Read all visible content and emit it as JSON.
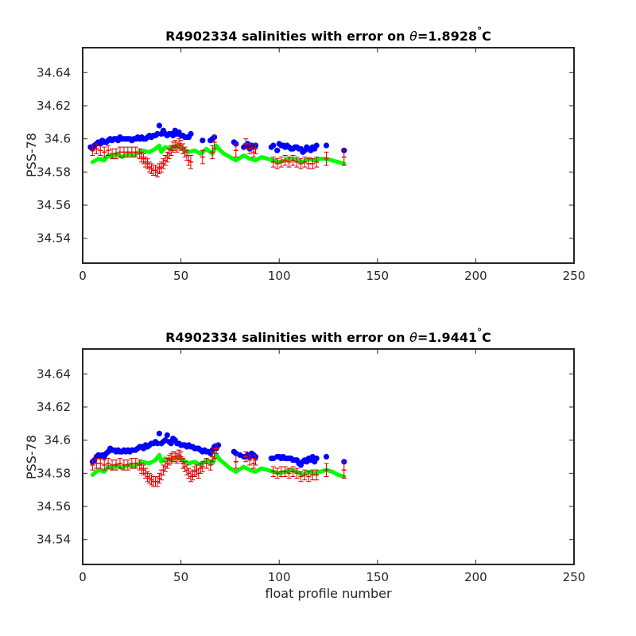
{
  "colors": {
    "float": "#0000ff",
    "mapped": "#ff0000",
    "error": "#cc0000",
    "climatology": "#00ff00",
    "axis": "#262626"
  },
  "chart_data": [
    {
      "type": "scatter",
      "title_prefix": "R4902334 salinities with error on ",
      "title_theta": "θ",
      "title_value": "=1.8928",
      "title_deg": "°",
      "title_unit": "C",
      "xlabel": "",
      "ylabel": "PSS-78",
      "xlim": [
        0,
        250
      ],
      "ylim": [
        34.525,
        34.655
      ],
      "xticks": [
        0,
        50,
        100,
        150,
        200,
        250
      ],
      "yticks": [
        34.54,
        34.56,
        34.58,
        34.6,
        34.62,
        34.64
      ],
      "series": [
        {
          "role": "float",
          "marker": "dot",
          "x": [
            4,
            5,
            6,
            7,
            8,
            9,
            10,
            11,
            12,
            13,
            14,
            15,
            16,
            17,
            18,
            19,
            20,
            21,
            22,
            23,
            24,
            25,
            26,
            27,
            28,
            29,
            30,
            31,
            32,
            33,
            34,
            35,
            36,
            37,
            38,
            39,
            40,
            41,
            42,
            43,
            44,
            45,
            46,
            47,
            48,
            49,
            50,
            51,
            52,
            53,
            54,
            55,
            61,
            65,
            66,
            67,
            77,
            78,
            82,
            83,
            84,
            85,
            86,
            87,
            88,
            96,
            97,
            99,
            100,
            101,
            102,
            103,
            104,
            105,
            106,
            107,
            108,
            109,
            110,
            111,
            112,
            113,
            114,
            115,
            116,
            117,
            118,
            119,
            124,
            133
          ],
          "y": [
            34.595,
            34.594,
            34.596,
            34.597,
            34.598,
            34.597,
            34.599,
            34.598,
            34.598,
            34.599,
            34.6,
            34.599,
            34.6,
            34.6,
            34.599,
            34.601,
            34.6,
            34.6,
            34.6,
            34.6,
            34.6,
            34.599,
            34.6,
            34.6,
            34.601,
            34.6,
            34.601,
            34.6,
            34.6,
            34.601,
            34.602,
            34.601,
            34.602,
            34.602,
            34.603,
            34.608,
            34.603,
            34.605,
            34.603,
            34.602,
            34.603,
            34.603,
            34.602,
            34.605,
            34.603,
            34.604,
            34.602,
            34.602,
            34.601,
            34.601,
            34.601,
            34.603,
            34.599,
            34.599,
            34.6,
            34.601,
            34.598,
            34.597,
            34.595,
            34.596,
            34.597,
            34.594,
            34.596,
            34.595,
            34.596,
            34.595,
            34.596,
            34.593,
            34.597,
            34.596,
            34.596,
            34.595,
            34.596,
            34.595,
            34.594,
            34.594,
            34.595,
            34.595,
            34.594,
            34.594,
            34.592,
            34.593,
            34.595,
            34.594,
            34.593,
            34.595,
            34.594,
            34.596,
            34.596,
            34.593
          ]
        },
        {
          "role": "climatology",
          "marker": "line",
          "x": [
            5,
            8,
            11,
            13,
            15,
            17,
            20,
            23,
            26,
            30,
            34,
            37,
            39,
            40,
            42,
            45,
            48,
            51,
            54,
            57,
            60,
            63,
            66,
            68,
            70,
            72,
            75,
            78,
            82,
            85,
            88,
            91,
            94,
            97,
            100,
            103,
            106,
            109,
            112,
            115,
            118,
            121,
            124,
            127,
            130,
            133
          ],
          "y": [
            34.586,
            34.588,
            34.587,
            34.59,
            34.589,
            34.591,
            34.589,
            34.591,
            34.59,
            34.593,
            34.592,
            34.594,
            34.596,
            34.592,
            34.595,
            34.594,
            34.596,
            34.594,
            34.592,
            34.593,
            34.591,
            34.594,
            34.591,
            34.596,
            34.593,
            34.591,
            34.589,
            34.587,
            34.59,
            34.588,
            34.587,
            34.589,
            34.588,
            34.587,
            34.586,
            34.587,
            34.588,
            34.587,
            34.586,
            34.588,
            34.587,
            34.588,
            34.588,
            34.587,
            34.586,
            34.585
          ]
        },
        {
          "role": "mapped",
          "marker": "errorbar",
          "x": [
            5,
            7,
            9,
            11,
            13,
            15,
            17,
            19,
            21,
            23,
            25,
            27,
            29,
            30,
            31,
            32,
            33,
            34,
            35,
            36,
            37,
            38,
            39,
            40,
            41,
            42,
            43,
            44,
            45,
            46,
            47,
            48,
            49,
            50,
            51,
            52,
            53,
            54,
            55,
            61,
            66,
            67,
            78,
            83,
            85,
            87,
            88,
            97,
            99,
            101,
            103,
            105,
            107,
            109,
            111,
            113,
            115,
            117,
            119,
            124,
            133
          ],
          "y": [
            34.593,
            34.594,
            34.593,
            34.592,
            34.593,
            34.591,
            34.591,
            34.592,
            34.592,
            34.592,
            34.592,
            34.592,
            34.591,
            34.589,
            34.588,
            34.586,
            34.585,
            34.583,
            34.582,
            34.581,
            34.581,
            34.58,
            34.582,
            34.583,
            34.585,
            34.587,
            34.589,
            34.591,
            34.593,
            34.595,
            34.596,
            34.595,
            34.597,
            34.596,
            34.594,
            34.592,
            34.59,
            34.587,
            34.586,
            34.589,
            34.592,
            34.598,
            34.593,
            34.597,
            34.594,
            34.592,
            34.594,
            34.586,
            34.585,
            34.586,
            34.587,
            34.586,
            34.587,
            34.586,
            34.585,
            34.586,
            34.585,
            34.585,
            34.586,
            34.588,
            34.589
          ],
          "err": [
            0.003,
            0.003,
            0.003,
            0.003,
            0.003,
            0.003,
            0.003,
            0.003,
            0.003,
            0.003,
            0.003,
            0.003,
            0.003,
            0.003,
            0.003,
            0.003,
            0.003,
            0.003,
            0.003,
            0.003,
            0.003,
            0.003,
            0.003,
            0.003,
            0.003,
            0.003,
            0.003,
            0.003,
            0.003,
            0.003,
            0.003,
            0.003,
            0.003,
            0.003,
            0.003,
            0.003,
            0.003,
            0.003,
            0.004,
            0.004,
            0.004,
            0.004,
            0.004,
            0.003,
            0.003,
            0.003,
            0.003,
            0.003,
            0.003,
            0.003,
            0.003,
            0.003,
            0.003,
            0.003,
            0.003,
            0.003,
            0.003,
            0.003,
            0.003,
            0.004,
            0.005
          ]
        }
      ]
    },
    {
      "type": "scatter",
      "title_prefix": "R4902334 salinities with error on ",
      "title_theta": "θ",
      "title_value": "=1.9441",
      "title_deg": "°",
      "title_unit": "C",
      "xlabel": "float profile number",
      "ylabel": "PSS-78",
      "xlim": [
        0,
        250
      ],
      "ylim": [
        34.525,
        34.655
      ],
      "xticks": [
        0,
        50,
        100,
        150,
        200,
        250
      ],
      "yticks": [
        34.54,
        34.56,
        34.58,
        34.6,
        34.62,
        34.64
      ],
      "series": [
        {
          "role": "float",
          "marker": "dot",
          "x": [
            5,
            6,
            7,
            8,
            9,
            10,
            11,
            12,
            13,
            14,
            15,
            16,
            17,
            18,
            19,
            20,
            21,
            22,
            23,
            24,
            25,
            26,
            27,
            28,
            29,
            30,
            31,
            32,
            33,
            34,
            35,
            36,
            37,
            38,
            39,
            40,
            41,
            42,
            43,
            44,
            45,
            46,
            47,
            48,
            49,
            50,
            51,
            52,
            53,
            54,
            55,
            56,
            57,
            58,
            59,
            60,
            61,
            62,
            63,
            64,
            65,
            66,
            67,
            68,
            69,
            77,
            78,
            80,
            82,
            83,
            84,
            85,
            86,
            87,
            88,
            96,
            97,
            99,
            100,
            101,
            102,
            103,
            104,
            105,
            106,
            107,
            108,
            109,
            110,
            111,
            112,
            113,
            114,
            115,
            116,
            117,
            118,
            119,
            124,
            133
          ],
          "y": [
            34.587,
            34.588,
            34.59,
            34.591,
            34.59,
            34.591,
            34.59,
            34.592,
            34.593,
            34.595,
            34.594,
            34.594,
            34.593,
            34.594,
            34.593,
            34.593,
            34.594,
            34.593,
            34.594,
            34.593,
            34.594,
            34.594,
            34.594,
            34.595,
            34.596,
            34.596,
            34.595,
            34.597,
            34.596,
            34.597,
            34.598,
            34.598,
            34.599,
            34.598,
            34.604,
            34.598,
            34.599,
            34.6,
            34.603,
            34.599,
            34.598,
            34.601,
            34.6,
            34.598,
            34.598,
            34.597,
            34.597,
            34.597,
            34.596,
            34.597,
            34.596,
            34.596,
            34.595,
            34.595,
            34.595,
            34.594,
            34.593,
            34.594,
            34.593,
            34.593,
            34.592,
            34.594,
            34.596,
            34.595,
            34.597,
            34.593,
            34.592,
            34.591,
            34.59,
            34.59,
            34.591,
            34.59,
            34.592,
            34.591,
            34.59,
            34.589,
            34.589,
            34.59,
            34.59,
            34.589,
            34.59,
            34.589,
            34.589,
            34.589,
            34.589,
            34.588,
            34.588,
            34.588,
            34.586,
            34.585,
            34.587,
            34.588,
            34.587,
            34.589,
            34.588,
            34.59,
            34.587,
            34.589,
            34.59,
            34.587
          ]
        },
        {
          "role": "climatology",
          "marker": "line",
          "x": [
            5,
            8,
            11,
            13,
            15,
            17,
            20,
            23,
            26,
            30,
            34,
            37,
            39,
            40,
            42,
            45,
            48,
            51,
            54,
            57,
            60,
            63,
            66,
            68,
            70,
            72,
            75,
            78,
            82,
            85,
            88,
            91,
            94,
            97,
            100,
            103,
            106,
            109,
            112,
            115,
            118,
            121,
            124,
            127,
            130,
            133
          ],
          "y": [
            34.579,
            34.582,
            34.581,
            34.584,
            34.583,
            34.585,
            34.583,
            34.585,
            34.584,
            34.587,
            34.586,
            34.588,
            34.591,
            34.587,
            34.589,
            34.588,
            34.59,
            34.588,
            34.586,
            34.587,
            34.585,
            34.588,
            34.586,
            34.591,
            34.588,
            34.586,
            34.583,
            34.581,
            34.584,
            34.582,
            34.581,
            34.583,
            34.582,
            34.581,
            34.58,
            34.581,
            34.582,
            34.581,
            34.579,
            34.581,
            34.58,
            34.581,
            34.582,
            34.581,
            34.579,
            34.578
          ]
        },
        {
          "role": "mapped",
          "marker": "errorbar",
          "x": [
            5,
            7,
            9,
            11,
            13,
            15,
            17,
            19,
            21,
            23,
            25,
            27,
            29,
            30,
            31,
            32,
            33,
            34,
            35,
            36,
            37,
            38,
            39,
            40,
            41,
            42,
            43,
            44,
            45,
            46,
            47,
            48,
            49,
            50,
            51,
            52,
            53,
            54,
            55,
            56,
            57,
            58,
            59,
            60,
            61,
            63,
            65,
            66,
            67,
            68,
            78,
            83,
            85,
            87,
            88,
            97,
            99,
            101,
            103,
            105,
            107,
            109,
            111,
            113,
            115,
            117,
            119,
            124,
            133
          ],
          "y": [
            34.585,
            34.586,
            34.586,
            34.585,
            34.586,
            34.585,
            34.585,
            34.586,
            34.585,
            34.585,
            34.586,
            34.586,
            34.585,
            34.583,
            34.582,
            34.58,
            34.578,
            34.577,
            34.576,
            34.575,
            34.575,
            34.575,
            34.577,
            34.579,
            34.582,
            34.584,
            34.586,
            34.588,
            34.589,
            34.59,
            34.59,
            34.589,
            34.591,
            34.59,
            34.586,
            34.584,
            34.582,
            34.58,
            34.578,
            34.579,
            34.581,
            34.582,
            34.58,
            34.583,
            34.584,
            34.586,
            34.585,
            34.59,
            34.592,
            34.595,
            34.587,
            34.59,
            34.588,
            34.586,
            34.588,
            34.581,
            34.58,
            34.581,
            34.581,
            34.58,
            34.581,
            34.58,
            34.578,
            34.579,
            34.578,
            34.579,
            34.579,
            34.582,
            34.582
          ],
          "err": [
            0.003,
            0.003,
            0.003,
            0.003,
            0.003,
            0.003,
            0.003,
            0.003,
            0.003,
            0.003,
            0.003,
            0.003,
            0.003,
            0.003,
            0.003,
            0.003,
            0.003,
            0.003,
            0.003,
            0.003,
            0.003,
            0.003,
            0.003,
            0.003,
            0.003,
            0.003,
            0.003,
            0.003,
            0.003,
            0.003,
            0.003,
            0.003,
            0.003,
            0.003,
            0.003,
            0.003,
            0.003,
            0.003,
            0.003,
            0.003,
            0.003,
            0.003,
            0.003,
            0.003,
            0.003,
            0.003,
            0.003,
            0.003,
            0.003,
            0.003,
            0.004,
            0.003,
            0.003,
            0.003,
            0.003,
            0.003,
            0.003,
            0.003,
            0.003,
            0.003,
            0.003,
            0.003,
            0.003,
            0.003,
            0.003,
            0.003,
            0.003,
            0.004,
            0.005
          ]
        }
      ]
    }
  ]
}
